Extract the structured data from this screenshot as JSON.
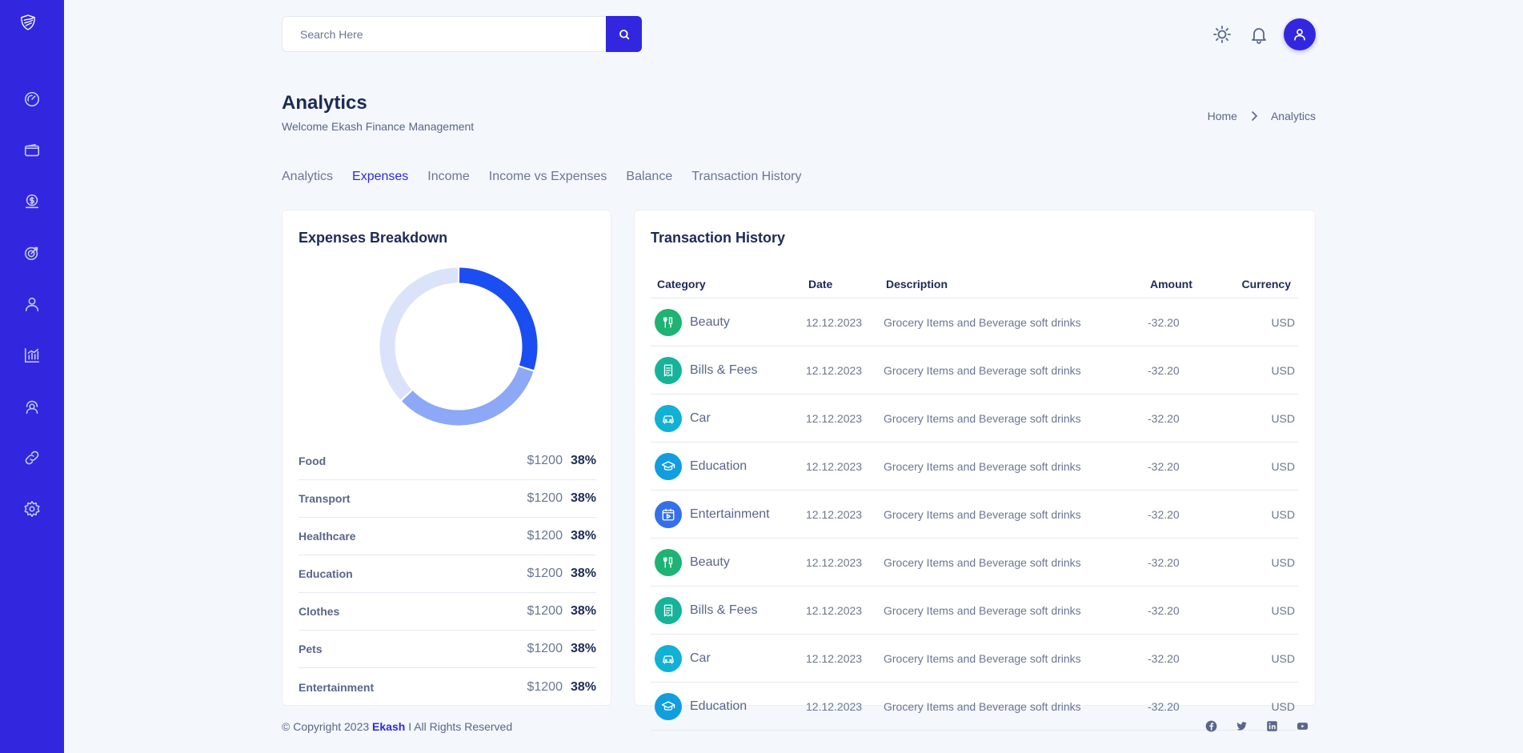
{
  "sidebar": {
    "logo_icon": "shield-logo-icon",
    "items": [
      {
        "name": "dashboard",
        "icon": "speedometer-icon"
      },
      {
        "name": "wallet",
        "icon": "wallet-icon"
      },
      {
        "name": "budget",
        "icon": "dollar-coin-icon"
      },
      {
        "name": "goals",
        "icon": "target-icon"
      },
      {
        "name": "profile",
        "icon": "user-icon"
      },
      {
        "name": "analytics",
        "icon": "bar-chart-icon"
      },
      {
        "name": "support",
        "icon": "headset-icon"
      },
      {
        "name": "links",
        "icon": "link-icon"
      },
      {
        "name": "settings",
        "icon": "gear-icon"
      }
    ]
  },
  "search": {
    "placeholder": "Search Here",
    "value": ""
  },
  "header": {
    "theme_icon": "sun-icon",
    "notification_icon": "bell-icon",
    "avatar_icon": "user-icon"
  },
  "page": {
    "title": "Analytics",
    "subtitle": "Welcome Ekash Finance Management"
  },
  "breadcrumb": {
    "home": "Home",
    "current": "Analytics"
  },
  "tabs": [
    {
      "label": "Analytics",
      "active": false
    },
    {
      "label": "Expenses",
      "active": true
    },
    {
      "label": "Income",
      "active": false
    },
    {
      "label": "Income vs Expenses",
      "active": false
    },
    {
      "label": "Balance",
      "active": false
    },
    {
      "label": "Transaction History",
      "active": false
    }
  ],
  "expenses": {
    "title": "Expenses Breakdown",
    "rows": [
      {
        "name": "Food",
        "amount": "$1200",
        "percent": "38%"
      },
      {
        "name": "Transport",
        "amount": "$1200",
        "percent": "38%"
      },
      {
        "name": "Healthcare",
        "amount": "$1200",
        "percent": "38%"
      },
      {
        "name": "Education",
        "amount": "$1200",
        "percent": "38%"
      },
      {
        "name": "Clothes",
        "amount": "$1200",
        "percent": "38%"
      },
      {
        "name": "Pets",
        "amount": "$1200",
        "percent": "38%"
      },
      {
        "name": "Entertainment",
        "amount": "$1200",
        "percent": "38%"
      }
    ]
  },
  "chart_data": {
    "type": "pie",
    "variant": "donut",
    "title": "",
    "values": [
      30,
      33,
      37
    ],
    "colors": [
      "#1b4ef0",
      "#8ca8f6",
      "#dbe3fa"
    ],
    "legend": "none"
  },
  "transactions": {
    "title": "Transaction History",
    "columns": {
      "category": "Category",
      "date": "Date",
      "description": "Description",
      "amount": "Amount",
      "currency": "Currency"
    },
    "rows": [
      {
        "category": "Beauty",
        "icon": "beauty-tools-icon",
        "color": "#1db373",
        "date": "12.12.2023",
        "description": "Grocery Items and Beverage soft drinks",
        "amount": "-32.20",
        "currency": "USD"
      },
      {
        "category": "Bills & Fees",
        "icon": "receipt-icon",
        "color": "#15b39a",
        "date": "12.12.2023",
        "description": "Grocery Items and Beverage soft drinks",
        "amount": "-32.20",
        "currency": "USD"
      },
      {
        "category": "Car",
        "icon": "car-icon",
        "color": "#10b1d5",
        "date": "12.12.2023",
        "description": "Grocery Items and Beverage soft drinks",
        "amount": "-32.20",
        "currency": "USD"
      },
      {
        "category": "Education",
        "icon": "graduation-cap-icon",
        "color": "#119ee0",
        "date": "12.12.2023",
        "description": "Grocery Items and Beverage soft drinks",
        "amount": "-32.20",
        "currency": "USD"
      },
      {
        "category": "Entertainment",
        "icon": "calendar-play-icon",
        "color": "#3570e9",
        "date": "12.12.2023",
        "description": "Grocery Items and Beverage soft drinks",
        "amount": "-32.20",
        "currency": "USD"
      },
      {
        "category": "Beauty",
        "icon": "beauty-tools-icon",
        "color": "#1db373",
        "date": "12.12.2023",
        "description": "Grocery Items and Beverage soft drinks",
        "amount": "-32.20",
        "currency": "USD"
      },
      {
        "category": "Bills & Fees",
        "icon": "receipt-icon",
        "color": "#15b39a",
        "date": "12.12.2023",
        "description": "Grocery Items and Beverage soft drinks",
        "amount": "-32.20",
        "currency": "USD"
      },
      {
        "category": "Car",
        "icon": "car-icon",
        "color": "#10b1d5",
        "date": "12.12.2023",
        "description": "Grocery Items and Beverage soft drinks",
        "amount": "-32.20",
        "currency": "USD"
      },
      {
        "category": "Education",
        "icon": "graduation-cap-icon",
        "color": "#119ee0",
        "date": "12.12.2023",
        "description": "Grocery Items and Beverage soft drinks",
        "amount": "-32.20",
        "currency": "USD"
      }
    ]
  },
  "footer": {
    "copyright_prefix": "© Copyright 2023",
    "brand": "Ekash",
    "copyright_suffix": "I All Rights Reserved",
    "social": [
      "facebook-icon",
      "twitter-icon",
      "linkedin-icon",
      "youtube-icon"
    ]
  },
  "colors": {
    "primary": "#3227df",
    "text_dark": "#1c2a56",
    "text_muted": "#6b7693",
    "background": "#f4f7fb"
  }
}
